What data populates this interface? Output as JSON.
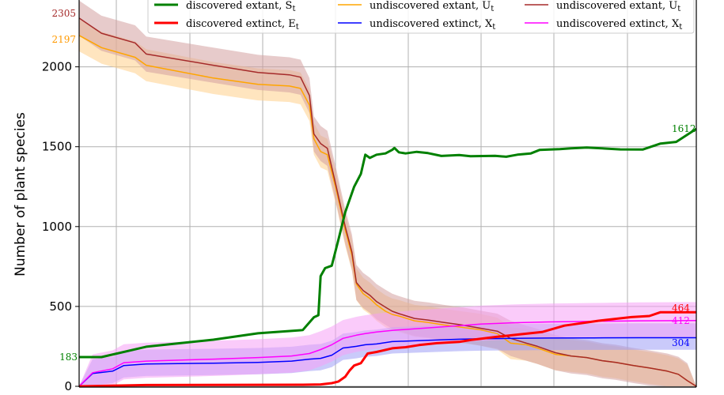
{
  "chart_data": {
    "type": "line",
    "title": "",
    "xlabel": "",
    "ylabel": "Number of plant species",
    "ylim": [
      0,
      2400
    ],
    "xlim": [
      1743,
      2019
    ],
    "yticks": [
      0,
      500,
      1000,
      1500,
      2000
    ],
    "grid": true,
    "legend_position": "top",
    "legend": [
      {
        "label": "discovered extant, S",
        "sub": "t",
        "color": "#008000"
      },
      {
        "label": "discovered extinct, E",
        "sub": "t",
        "color": "#ff0000"
      },
      {
        "label": "undiscovered extant, U",
        "sub": "t",
        "color": "#ffa500"
      },
      {
        "label": "undiscovered extinct, X",
        "sub": "t",
        "color": "#0000ff"
      },
      {
        "label": "undiscovered extant, U",
        "sub": "t",
        "color": "#a52a2a"
      },
      {
        "label": "undiscovered extinct, X",
        "sub": "t",
        "color": "#ff00ff"
      }
    ],
    "end_labels": [
      {
        "text": "2305",
        "series": "undiscovered extant, Ut (brown)",
        "color": "#a52a2a"
      },
      {
        "text": "2197",
        "series": "undiscovered extant, Ut (orange)",
        "color": "#ff9900"
      },
      {
        "text": "183",
        "series": "discovered extant, St",
        "color": "#008000"
      },
      {
        "text": "1612",
        "series": "discovered extant, St",
        "color": "#008000"
      },
      {
        "text": "464",
        "series": "discovered extinct, Et",
        "color": "#ff0000"
      },
      {
        "text": "412",
        "series": "undiscovered extinct, Xt (magenta)",
        "color": "#ff00ff"
      },
      {
        "text": "304",
        "series": "undiscovered extinct, Xt (blue)",
        "color": "#0000ff"
      }
    ],
    "series": [
      {
        "name": "discovered extant, St",
        "color": "#008000",
        "width": 3,
        "points": [
          [
            1743,
            183
          ],
          [
            1753,
            183
          ],
          [
            1773,
            248
          ],
          [
            1803,
            292
          ],
          [
            1823,
            332
          ],
          [
            1843,
            352
          ],
          [
            1848,
            432
          ],
          [
            1850,
            445
          ],
          [
            1851,
            690
          ],
          [
            1853,
            740
          ],
          [
            1856,
            755
          ],
          [
            1859,
            920
          ],
          [
            1862,
            1090
          ],
          [
            1866,
            1250
          ],
          [
            1869,
            1330
          ],
          [
            1871,
            1450
          ],
          [
            1873,
            1430
          ],
          [
            1876,
            1450
          ],
          [
            1880,
            1458
          ],
          [
            1883,
            1480
          ],
          [
            1884,
            1492
          ],
          [
            1886,
            1465
          ],
          [
            1889,
            1458
          ],
          [
            1894,
            1468
          ],
          [
            1899,
            1460
          ],
          [
            1905,
            1442
          ],
          [
            1913,
            1448
          ],
          [
            1918,
            1440
          ],
          [
            1929,
            1443
          ],
          [
            1934,
            1437
          ],
          [
            1939,
            1450
          ],
          [
            1945,
            1458
          ],
          [
            1949,
            1480
          ],
          [
            1958,
            1485
          ],
          [
            1963,
            1490
          ],
          [
            1970,
            1495
          ],
          [
            1985,
            1483
          ],
          [
            1995,
            1482
          ],
          [
            2003,
            1520
          ],
          [
            2010,
            1530
          ],
          [
            2019,
            1612
          ]
        ]
      },
      {
        "name": "discovered extinct, Et",
        "color": "#ff0000",
        "width": 3,
        "points": [
          [
            1743,
            0
          ],
          [
            1773,
            8
          ],
          [
            1843,
            10
          ],
          [
            1851,
            12
          ],
          [
            1856,
            20
          ],
          [
            1859,
            30
          ],
          [
            1862,
            60
          ],
          [
            1864,
            100
          ],
          [
            1866,
            130
          ],
          [
            1869,
            145
          ],
          [
            1872,
            205
          ],
          [
            1876,
            215
          ],
          [
            1883,
            238
          ],
          [
            1889,
            245
          ],
          [
            1895,
            258
          ],
          [
            1903,
            270
          ],
          [
            1913,
            278
          ],
          [
            1918,
            290
          ],
          [
            1930,
            310
          ],
          [
            1940,
            325
          ],
          [
            1950,
            340
          ],
          [
            1960,
            380
          ],
          [
            1975,
            410
          ],
          [
            1990,
            433
          ],
          [
            1998,
            440
          ],
          [
            2003,
            464
          ],
          [
            2019,
            464
          ]
        ]
      },
      {
        "name": "undiscovered extant, Ut (orange)",
        "color": "#ffa500",
        "width": 1.5,
        "band": [
          100,
          100
        ],
        "bandColor": "#ffd08a",
        "points": [
          [
            1743,
            2197
          ],
          [
            1753,
            2120
          ],
          [
            1768,
            2060
          ],
          [
            1773,
            2010
          ],
          [
            1803,
            1930
          ],
          [
            1823,
            1890
          ],
          [
            1837,
            1880
          ],
          [
            1842,
            1865
          ],
          [
            1846,
            1760
          ],
          [
            1848,
            1550
          ],
          [
            1851,
            1470
          ],
          [
            1854,
            1450
          ],
          [
            1858,
            1230
          ],
          [
            1862,
            980
          ],
          [
            1865,
            820
          ],
          [
            1867,
            640
          ],
          [
            1870,
            580
          ],
          [
            1873,
            550
          ],
          [
            1876,
            510
          ],
          [
            1880,
            470
          ],
          [
            1883,
            450
          ],
          [
            1886,
            440
          ],
          [
            1893,
            410
          ],
          [
            1899,
            400
          ],
          [
            1906,
            385
          ],
          [
            1914,
            370
          ],
          [
            1922,
            355
          ],
          [
            1930,
            330
          ],
          [
            1936,
            270
          ],
          [
            1943,
            260
          ],
          [
            1948,
            240
          ],
          [
            1956,
            200
          ],
          [
            1963,
            190
          ],
          [
            1970,
            180
          ],
          [
            1977,
            160
          ],
          [
            1983,
            150
          ],
          [
            1991,
            130
          ],
          [
            1998,
            115
          ],
          [
            2006,
            95
          ],
          [
            2011,
            75
          ],
          [
            2015,
            35
          ],
          [
            2019,
            0
          ]
        ]
      },
      {
        "name": "undiscovered extant, Ut (brown)",
        "color": "#a52a2a",
        "width": 1.5,
        "band": [
          110,
          110
        ],
        "bandColor": "#d4a0a0",
        "points": [
          [
            1743,
            2305
          ],
          [
            1753,
            2210
          ],
          [
            1768,
            2150
          ],
          [
            1773,
            2080
          ],
          [
            1803,
            2010
          ],
          [
            1823,
            1965
          ],
          [
            1837,
            1950
          ],
          [
            1842,
            1935
          ],
          [
            1846,
            1820
          ],
          [
            1848,
            1580
          ],
          [
            1851,
            1520
          ],
          [
            1854,
            1490
          ],
          [
            1858,
            1250
          ],
          [
            1862,
            1000
          ],
          [
            1865,
            840
          ],
          [
            1867,
            650
          ],
          [
            1870,
            600
          ],
          [
            1873,
            570
          ],
          [
            1876,
            530
          ],
          [
            1880,
            495
          ],
          [
            1883,
            470
          ],
          [
            1886,
            455
          ],
          [
            1893,
            425
          ],
          [
            1899,
            415
          ],
          [
            1906,
            400
          ],
          [
            1914,
            385
          ],
          [
            1922,
            365
          ],
          [
            1930,
            345
          ],
          [
            1936,
            300
          ],
          [
            1943,
            270
          ],
          [
            1948,
            250
          ],
          [
            1956,
            210
          ],
          [
            1963,
            190
          ],
          [
            1970,
            180
          ],
          [
            1977,
            160
          ],
          [
            1983,
            150
          ],
          [
            1991,
            130
          ],
          [
            1998,
            115
          ],
          [
            2006,
            95
          ],
          [
            2011,
            75
          ],
          [
            2015,
            35
          ],
          [
            2019,
            0
          ]
        ]
      },
      {
        "name": "undiscovered extinct, Xt (blue)",
        "color": "#0000ff",
        "width": 1.5,
        "band": [
          75,
          90
        ],
        "bandColor": "#9f9ff5",
        "points": [
          [
            1743,
            0
          ],
          [
            1749,
            80
          ],
          [
            1758,
            95
          ],
          [
            1763,
            130
          ],
          [
            1773,
            140
          ],
          [
            1803,
            145
          ],
          [
            1823,
            150
          ],
          [
            1838,
            158
          ],
          [
            1846,
            170
          ],
          [
            1851,
            175
          ],
          [
            1856,
            195
          ],
          [
            1861,
            240
          ],
          [
            1864,
            245
          ],
          [
            1867,
            250
          ],
          [
            1871,
            260
          ],
          [
            1876,
            265
          ],
          [
            1883,
            280
          ],
          [
            1893,
            285
          ],
          [
            1903,
            290
          ],
          [
            1913,
            295
          ],
          [
            1923,
            298
          ],
          [
            1938,
            300
          ],
          [
            1953,
            302
          ],
          [
            1973,
            303
          ],
          [
            1993,
            304
          ],
          [
            2019,
            304
          ]
        ]
      },
      {
        "name": "undiscovered extinct, Xt (magenta)",
        "color": "#ff00ff",
        "width": 1.5,
        "band": [
          105,
          115
        ],
        "bandColor": "#f5a0f5",
        "points": [
          [
            1743,
            0
          ],
          [
            1749,
            85
          ],
          [
            1758,
            110
          ],
          [
            1763,
            148
          ],
          [
            1773,
            158
          ],
          [
            1803,
            170
          ],
          [
            1823,
            180
          ],
          [
            1838,
            190
          ],
          [
            1846,
            205
          ],
          [
            1851,
            230
          ],
          [
            1856,
            260
          ],
          [
            1861,
            300
          ],
          [
            1864,
            310
          ],
          [
            1867,
            320
          ],
          [
            1871,
            330
          ],
          [
            1876,
            340
          ],
          [
            1883,
            350
          ],
          [
            1893,
            360
          ],
          [
            1903,
            370
          ],
          [
            1913,
            380
          ],
          [
            1923,
            390
          ],
          [
            1938,
            398
          ],
          [
            1953,
            403
          ],
          [
            1973,
            407
          ],
          [
            1993,
            410
          ],
          [
            2019,
            412
          ]
        ]
      }
    ]
  }
}
